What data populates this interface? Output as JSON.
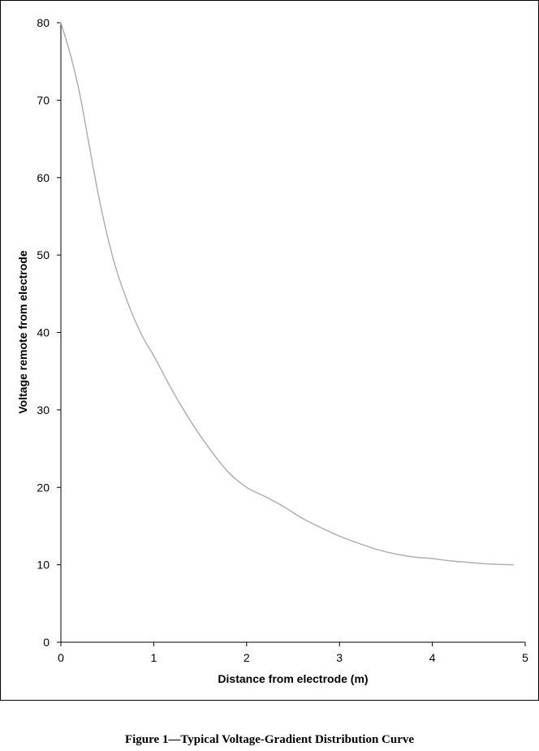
{
  "figure": {
    "caption": "Figure 1—Typical Voltage-Gradient Distribution Curve"
  },
  "chart_data": {
    "type": "line",
    "title": "",
    "xlabel": "Distance from electrode (m)",
    "ylabel": "Voltage remote from electrode",
    "xlim": [
      0,
      5
    ],
    "ylim": [
      0,
      80
    ],
    "x_ticks": [
      "0",
      "1",
      "2",
      "3",
      "4",
      "5"
    ],
    "y_ticks": [
      "0",
      "10",
      "20",
      "30",
      "40",
      "50",
      "60",
      "70",
      "80"
    ],
    "grid": false,
    "legend": "none",
    "line_color": "#b0b0b0",
    "series": [
      {
        "x": [
          0,
          0.1,
          0.2,
          0.3,
          0.4,
          0.5,
          0.6,
          0.7,
          0.8,
          0.9,
          1.0,
          1.2,
          1.4,
          1.6,
          1.8,
          2.0,
          2.2,
          2.4,
          2.6,
          2.8,
          3.0,
          3.2,
          3.4,
          3.6,
          3.8,
          4.0,
          4.2,
          4.4,
          4.6,
          4.87
        ],
        "y": [
          80,
          76,
          71,
          64.5,
          58,
          52.5,
          48,
          44.5,
          41.5,
          39,
          37,
          32.5,
          28.5,
          25,
          22,
          20,
          18.8,
          17.5,
          16,
          14.8,
          13.7,
          12.8,
          12,
          11.4,
          11,
          10.8,
          10.5,
          10.3,
          10.1,
          10
        ]
      }
    ]
  }
}
